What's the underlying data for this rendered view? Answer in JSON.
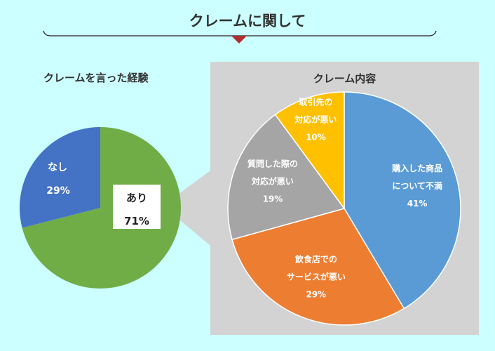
{
  "title": "クレームに関して",
  "colors": {
    "background": "#ccffff",
    "panel": "#d3d3d3",
    "marker": "#b03030",
    "left_yes": "#70ad47",
    "left_no": "#4472c4",
    "blue": "#5b9bd5",
    "orange": "#ed7d31",
    "gray": "#a5a5a5",
    "gold": "#ffc000"
  },
  "chart_data": [
    {
      "type": "pie",
      "title": "クレームを言った経験",
      "slices": [
        {
          "label": "あり",
          "value": 71,
          "value_text": "71%",
          "color": "#70ad47"
        },
        {
          "label": "なし",
          "value": 29,
          "value_text": "29%",
          "color": "#4472c4"
        }
      ]
    },
    {
      "type": "pie",
      "title": "クレーム内容",
      "slices": [
        {
          "label": "購入した商品について不満",
          "lines": [
            "購入した商品",
            "について不満"
          ],
          "value": 41,
          "value_text": "41%",
          "color": "#5b9bd5"
        },
        {
          "label": "飲食店でのサービスが悪い",
          "lines": [
            "飲食店での",
            "サービスが悪い"
          ],
          "value": 29,
          "value_text": "29%",
          "color": "#ed7d31"
        },
        {
          "label": "質問した際の対応が悪い",
          "lines": [
            "質問した際の",
            "対応が悪い"
          ],
          "value": 19,
          "value_text": "19%",
          "color": "#a5a5a5"
        },
        {
          "label": "取引先の対応が悪い",
          "lines": [
            "取引先の",
            "対応が悪い"
          ],
          "value": 10,
          "value_text": "10%",
          "color": "#ffc000"
        }
      ]
    }
  ]
}
